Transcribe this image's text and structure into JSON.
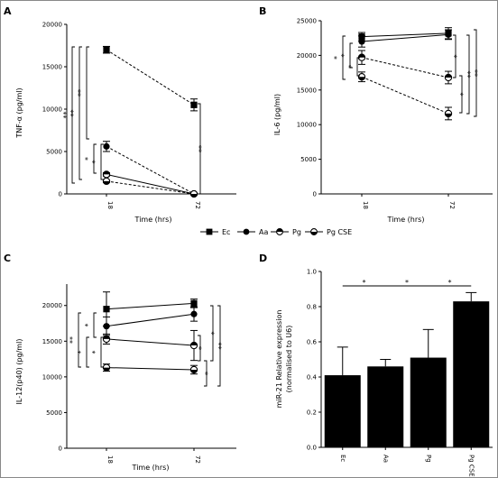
{
  "chart_data": [
    {
      "panel": "A",
      "type": "line",
      "xlabel": "Time (hrs)",
      "ylabel": "TNF-α (pg/ml)",
      "x": [
        "18",
        "72"
      ],
      "yticks": [
        "0",
        "5000",
        "10000",
        "15000",
        "20000"
      ],
      "ylim": [
        0,
        20000
      ],
      "series": [
        {
          "name": "Ec",
          "values": [
            17000,
            10500
          ],
          "errors": [
            400,
            700
          ]
        },
        {
          "name": "Aa",
          "values": [
            5600,
            0
          ],
          "errors": [
            600,
            100
          ]
        },
        {
          "name": "Pg",
          "values": [
            2300,
            0
          ],
          "errors": [
            200,
            80
          ]
        },
        {
          "name": "Pg CSE",
          "values": [
            1500,
            0
          ],
          "errors": [
            150,
            80
          ]
        }
      ],
      "annotations": [
        "**",
        "**",
        "**",
        "*",
        "*",
        "**"
      ]
    },
    {
      "panel": "B",
      "type": "line",
      "xlabel": "Time (hrs)",
      "ylabel": "IL-6 (pg/ml)",
      "x": [
        "18",
        "72"
      ],
      "yticks": [
        "0",
        "5000",
        "10000",
        "15000",
        "20000",
        "25000"
      ],
      "ylim": [
        0,
        25000
      ],
      "series": [
        {
          "name": "Ec",
          "values": [
            22700,
            23200
          ],
          "errors": [
            600,
            800
          ]
        },
        {
          "name": "Aa",
          "values": [
            22000,
            23000
          ],
          "errors": [
            800,
            700
          ]
        },
        {
          "name": "Pg",
          "values": [
            19700,
            16800
          ],
          "errors": [
            1000,
            900
          ]
        },
        {
          "name": "Pg CSE",
          "values": [
            16900,
            11600
          ],
          "errors": [
            700,
            900
          ]
        }
      ],
      "annotations": [
        "*",
        "*",
        "*",
        "*",
        "*",
        "**",
        "**"
      ]
    },
    {
      "panel": "C",
      "type": "line",
      "xlabel": "Time (hrs)",
      "ylabel": "IL-12(p40) (pg/ml)",
      "x": [
        "18",
        "72"
      ],
      "yticks": [
        "0",
        "5000",
        "10000",
        "15000",
        "20000"
      ],
      "ylim": [
        0,
        23000
      ],
      "series": [
        {
          "name": "Ec",
          "values": [
            19500,
            20300
          ],
          "errors": [
            2400,
            600
          ]
        },
        {
          "name": "Aa",
          "values": [
            17100,
            18800
          ],
          "errors": [
            1300,
            1000
          ]
        },
        {
          "name": "Pg",
          "values": [
            15300,
            14400
          ],
          "errors": [
            700,
            2100
          ]
        },
        {
          "name": "Pg CSE",
          "values": [
            11300,
            11000
          ],
          "errors": [
            500,
            600
          ]
        }
      ],
      "annotations": [
        "**",
        "*",
        "*",
        "*",
        "*",
        "*",
        "*",
        "**"
      ]
    },
    {
      "panel": "D",
      "type": "bar",
      "xlabel": "",
      "ylabel": "miR-21 Relative expression (normalised to U6)",
      "categories": [
        "Ec",
        "Aa",
        "Pg",
        "Pg CSE"
      ],
      "values": [
        0.41,
        0.46,
        0.51,
        0.83
      ],
      "errors": [
        0.16,
        0.04,
        0.16,
        0.05
      ],
      "yticks": [
        "0.0",
        "0.2",
        "0.4",
        "0.6",
        "0.8",
        "1.0"
      ],
      "ylim": [
        0,
        1.0
      ],
      "annotations": [
        "*",
        "*",
        "*"
      ]
    }
  ],
  "legend": {
    "placement": "center",
    "items": [
      {
        "label": "Ec",
        "marker": "filled-square"
      },
      {
        "label": "Aa",
        "marker": "filled-circle"
      },
      {
        "label": "Pg",
        "marker": "half-circle"
      },
      {
        "label": "Pg CSE",
        "marker": "half-circle-open"
      }
    ]
  }
}
